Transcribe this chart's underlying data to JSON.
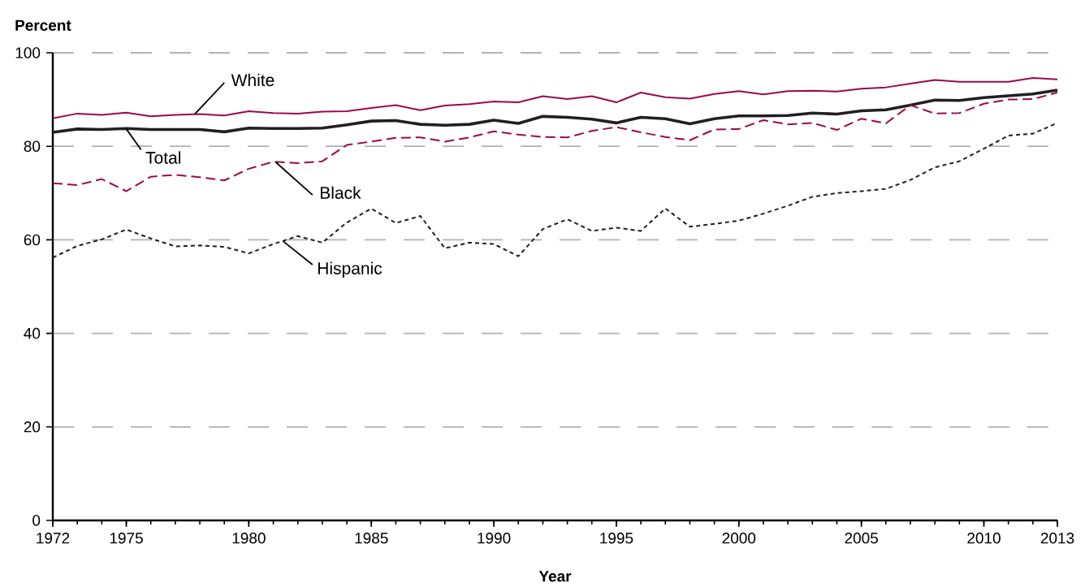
{
  "chart_data": {
    "type": "line",
    "xlabel": "Year",
    "ylabel": "Percent",
    "x": [
      1972,
      1973,
      1974,
      1975,
      1976,
      1977,
      1978,
      1979,
      1980,
      1981,
      1982,
      1983,
      1984,
      1985,
      1986,
      1987,
      1988,
      1989,
      1990,
      1991,
      1992,
      1993,
      1994,
      1995,
      1996,
      1997,
      1998,
      1999,
      2000,
      2001,
      2002,
      2003,
      2004,
      2005,
      2006,
      2007,
      2008,
      2009,
      2010,
      2011,
      2012,
      2013
    ],
    "series": [
      {
        "name": "White",
        "color": "#9b0a4a",
        "line_style": "solid",
        "values": [
          86,
          87,
          86.7,
          87.2,
          86.4,
          86.7,
          86.9,
          86.6,
          87.5,
          87.1,
          87,
          87.4,
          87.5,
          88.2,
          88.8,
          87.7,
          88.7,
          89,
          89.6,
          89.4,
          90.7,
          90.1,
          90.7,
          89.4,
          91.5,
          90.5,
          90.2,
          91.2,
          91.8,
          91.1,
          91.8,
          91.9,
          91.7,
          92.3,
          92.6,
          93.4,
          94.2,
          93.8,
          93.8,
          93.8,
          94.6,
          94.3
        ]
      },
      {
        "name": "Total",
        "color": "#231f20",
        "line_style": "solid",
        "values": [
          83,
          83.7,
          83.6,
          83.8,
          83.6,
          83.6,
          83.6,
          83.1,
          83.9,
          83.8,
          83.8,
          83.9,
          84.6,
          85.4,
          85.5,
          84.7,
          84.5,
          84.7,
          85.6,
          84.9,
          86.4,
          86.2,
          85.8,
          85,
          86.2,
          85.9,
          84.8,
          85.9,
          86.5,
          86.5,
          86.6,
          87.1,
          86.9,
          87.6,
          87.8,
          88.8,
          89.9,
          89.8,
          90.4,
          90.8,
          91.2,
          92
        ]
      },
      {
        "name": "Black",
        "color": "#9b0a4a",
        "line_style": "dashed",
        "values": [
          72.1,
          71.7,
          73,
          70.4,
          73.5,
          73.9,
          73.4,
          72.7,
          75.2,
          76.7,
          76.4,
          76.8,
          80.3,
          81,
          81.8,
          81.9,
          81,
          81.9,
          83.2,
          82.5,
          82,
          81.9,
          83.3,
          84.1,
          83,
          82,
          81.3,
          83.6,
          83.7,
          85.6,
          84.7,
          85,
          83.5,
          85.9,
          84.9,
          88.8,
          87,
          87.1,
          89.1,
          90,
          90.1,
          91.5
        ]
      },
      {
        "name": "Hispanic",
        "color": "#231f20",
        "line_style": "dotted",
        "values": [
          56.2,
          58.7,
          60.1,
          62.2,
          60.3,
          58.6,
          58.8,
          58.5,
          57.1,
          59.1,
          60.8,
          59.4,
          63.7,
          66.7,
          63.6,
          65.1,
          58.2,
          59.4,
          59.1,
          56.5,
          62.3,
          64.4,
          61.9,
          62.6,
          61.9,
          66.7,
          62.8,
          63.4,
          64.1,
          65.6,
          67.3,
          69.2,
          70,
          70.4,
          70.9,
          72.8,
          75.5,
          76.8,
          79.5,
          82.3,
          82.7,
          85
        ]
      }
    ],
    "xlim": [
      1972,
      2013
    ],
    "xticks": [
      1972,
      1975,
      1980,
      1985,
      1990,
      1995,
      2000,
      2005,
      2010,
      2013
    ],
    "ylim": [
      0,
      100
    ],
    "yticks": [
      0,
      20,
      40,
      60,
      80,
      100
    ],
    "grid": "y"
  }
}
